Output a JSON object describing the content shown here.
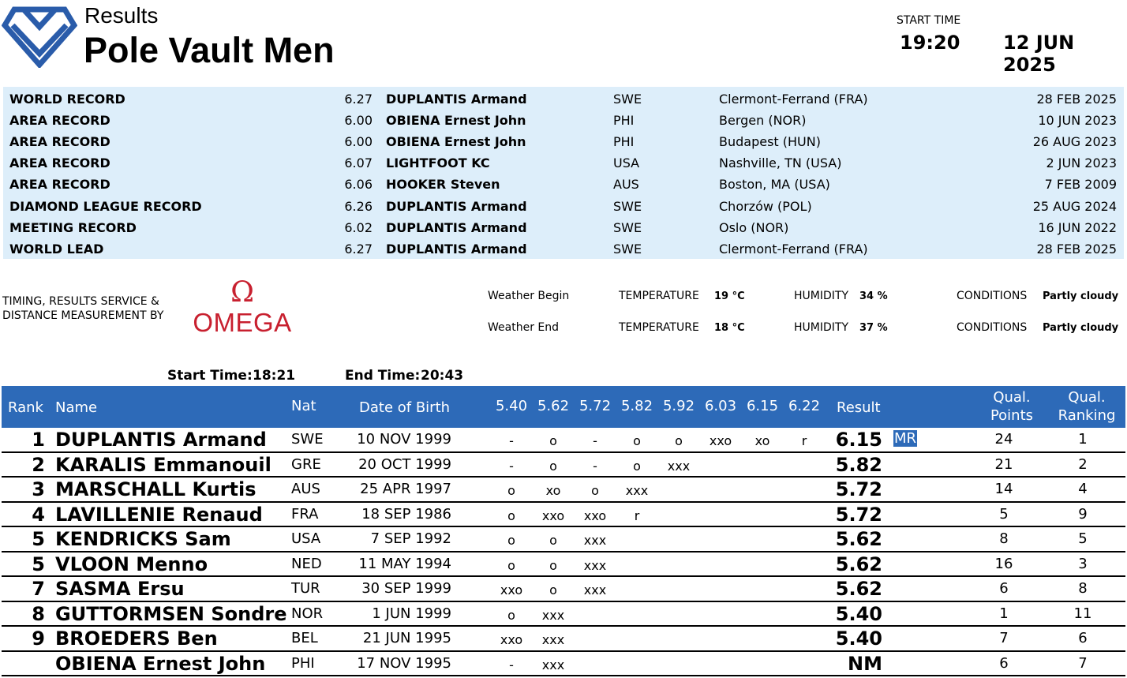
{
  "header": {
    "results_label": "Results",
    "event_title": "Pole Vault Men",
    "start_time_label": "START TIME",
    "start_time": "19:20",
    "date": "12 JUN 2025"
  },
  "records": [
    {
      "type": "WORLD RECORD",
      "mark": "6.27",
      "athlete": "DUPLANTIS Armand",
      "nat": "SWE",
      "venue": "Clermont-Ferrand (FRA)",
      "date": "28 FEB 2025"
    },
    {
      "type": "AREA RECORD",
      "mark": "6.00",
      "athlete": "OBIENA Ernest John",
      "nat": "PHI",
      "venue": "Bergen (NOR)",
      "date": "10 JUN 2023"
    },
    {
      "type": "AREA RECORD",
      "mark": "6.00",
      "athlete": "OBIENA Ernest John",
      "nat": "PHI",
      "venue": "Budapest (HUN)",
      "date": "26 AUG 2023"
    },
    {
      "type": "AREA RECORD",
      "mark": "6.07",
      "athlete": "LIGHTFOOT KC",
      "nat": "USA",
      "venue": "Nashville, TN (USA)",
      "date": "2 JUN 2023"
    },
    {
      "type": "AREA RECORD",
      "mark": "6.06",
      "athlete": "HOOKER Steven",
      "nat": "AUS",
      "venue": "Boston, MA (USA)",
      "date": "7 FEB 2009"
    },
    {
      "type": "DIAMOND LEAGUE RECORD",
      "mark": "6.26",
      "athlete": "DUPLANTIS Armand",
      "nat": "SWE",
      "venue": "Chorzów (POL)",
      "date": "25 AUG 2024"
    },
    {
      "type": "MEETING RECORD",
      "mark": "6.02",
      "athlete": "DUPLANTIS Armand",
      "nat": "SWE",
      "venue": "Oslo (NOR)",
      "date": "16 JUN 2022"
    },
    {
      "type": "WORLD LEAD",
      "mark": "6.27",
      "athlete": "DUPLANTIS Armand",
      "nat": "SWE",
      "venue": "Clermont-Ferrand (FRA)",
      "date": "28 FEB 2025"
    }
  ],
  "timing": {
    "line1": "TIMING, RESULTS SERVICE &",
    "line2": "DISTANCE MEASUREMENT BY",
    "brand": "OMEGA"
  },
  "weather": {
    "begin": {
      "label": "Weather Begin",
      "temp_label": "TEMPERATURE",
      "temp": "19 °C",
      "hum_label": "HUMIDITY",
      "hum": "34 %",
      "cond_label": "CONDITIONS",
      "cond": "Partly cloudy"
    },
    "end": {
      "label": "Weather End",
      "temp_label": "TEMPERATURE",
      "temp": "18 °C",
      "hum_label": "HUMIDITY",
      "hum": "37 %",
      "cond_label": "CONDITIONS",
      "cond": "Partly cloudy"
    }
  },
  "competition_times": {
    "start_label": "Start Time:",
    "start": "18:21",
    "end_label": "End Time:",
    "end": "20:43"
  },
  "table": {
    "headers": {
      "rank": "Rank",
      "name": "Name",
      "nat": "Nat",
      "dob": "Date of Birth",
      "heights": [
        "5.40",
        "5.62",
        "5.72",
        "5.82",
        "5.92",
        "6.03",
        "6.15",
        "6.22"
      ],
      "result": "Result",
      "qual_points_1": "Qual.",
      "qual_points_2": "Points",
      "qual_ranking_1": "Qual.",
      "qual_ranking_2": "Ranking"
    },
    "rows": [
      {
        "rank": "1",
        "name": "DUPLANTIS Armand",
        "nat": "SWE",
        "dob": "10 NOV 1999",
        "attempts": [
          "-",
          "o",
          "-",
          "o",
          "o",
          "xxo",
          "xo",
          "r"
        ],
        "result": "6.15",
        "record": "MR",
        "qual_points": "24",
        "qual_ranking": "1"
      },
      {
        "rank": "2",
        "name": "KARALIS Emmanouil",
        "nat": "GRE",
        "dob": "20 OCT 1999",
        "attempts": [
          "-",
          "o",
          "-",
          "o",
          "xxx",
          "",
          "",
          ""
        ],
        "result": "5.82",
        "record": "",
        "qual_points": "21",
        "qual_ranking": "2"
      },
      {
        "rank": "3",
        "name": "MARSCHALL Kurtis",
        "nat": "AUS",
        "dob": "25 APR 1997",
        "attempts": [
          "o",
          "xo",
          "o",
          "xxx",
          "",
          "",
          "",
          ""
        ],
        "result": "5.72",
        "record": "",
        "qual_points": "14",
        "qual_ranking": "4"
      },
      {
        "rank": "4",
        "name": "LAVILLENIE Renaud",
        "nat": "FRA",
        "dob": "18 SEP 1986",
        "attempts": [
          "o",
          "xxo",
          "xxo",
          "r",
          "",
          "",
          "",
          ""
        ],
        "result": "5.72",
        "record": "",
        "qual_points": "5",
        "qual_ranking": "9"
      },
      {
        "rank": "5",
        "name": "KENDRICKS Sam",
        "nat": "USA",
        "dob": "7 SEP 1992",
        "attempts": [
          "o",
          "o",
          "xxx",
          "",
          "",
          "",
          "",
          ""
        ],
        "result": "5.62",
        "record": "",
        "qual_points": "8",
        "qual_ranking": "5"
      },
      {
        "rank": "5",
        "name": "VLOON Menno",
        "nat": "NED",
        "dob": "11 MAY 1994",
        "attempts": [
          "o",
          "o",
          "xxx",
          "",
          "",
          "",
          "",
          ""
        ],
        "result": "5.62",
        "record": "",
        "qual_points": "16",
        "qual_ranking": "3"
      },
      {
        "rank": "7",
        "name": "SASMA Ersu",
        "nat": "TUR",
        "dob": "30 SEP 1999",
        "attempts": [
          "xxo",
          "o",
          "xxx",
          "",
          "",
          "",
          "",
          ""
        ],
        "result": "5.62",
        "record": "",
        "qual_points": "6",
        "qual_ranking": "8"
      },
      {
        "rank": "8",
        "name": "GUTTORMSEN Sondre",
        "nat": "NOR",
        "dob": "1 JUN 1999",
        "attempts": [
          "o",
          "xxx",
          "",
          "",
          "",
          "",
          "",
          ""
        ],
        "result": "5.40",
        "record": "",
        "qual_points": "1",
        "qual_ranking": "11"
      },
      {
        "rank": "9",
        "name": "BROEDERS Ben",
        "nat": "BEL",
        "dob": "21 JUN 1995",
        "attempts": [
          "xxo",
          "xxx",
          "",
          "",
          "",
          "",
          "",
          ""
        ],
        "result": "5.40",
        "record": "",
        "qual_points": "7",
        "qual_ranking": "6"
      },
      {
        "rank": "",
        "name": "OBIENA Ernest John",
        "nat": "PHI",
        "dob": "17 NOV 1995",
        "attempts": [
          "-",
          "xxx",
          "",
          "",
          "",
          "",
          "",
          ""
        ],
        "result": "NM",
        "record": "",
        "qual_points": "6",
        "qual_ranking": "7"
      }
    ]
  },
  "colors": {
    "header_blue": "#2d6ab8",
    "records_bg": "#ddeefa",
    "logo_blue": "#2a5caa",
    "omega_red": "#c8202f"
  },
  "icons": {
    "diamond_logo": "diamond-league-logo",
    "omega_symbol": "omega-logo"
  }
}
